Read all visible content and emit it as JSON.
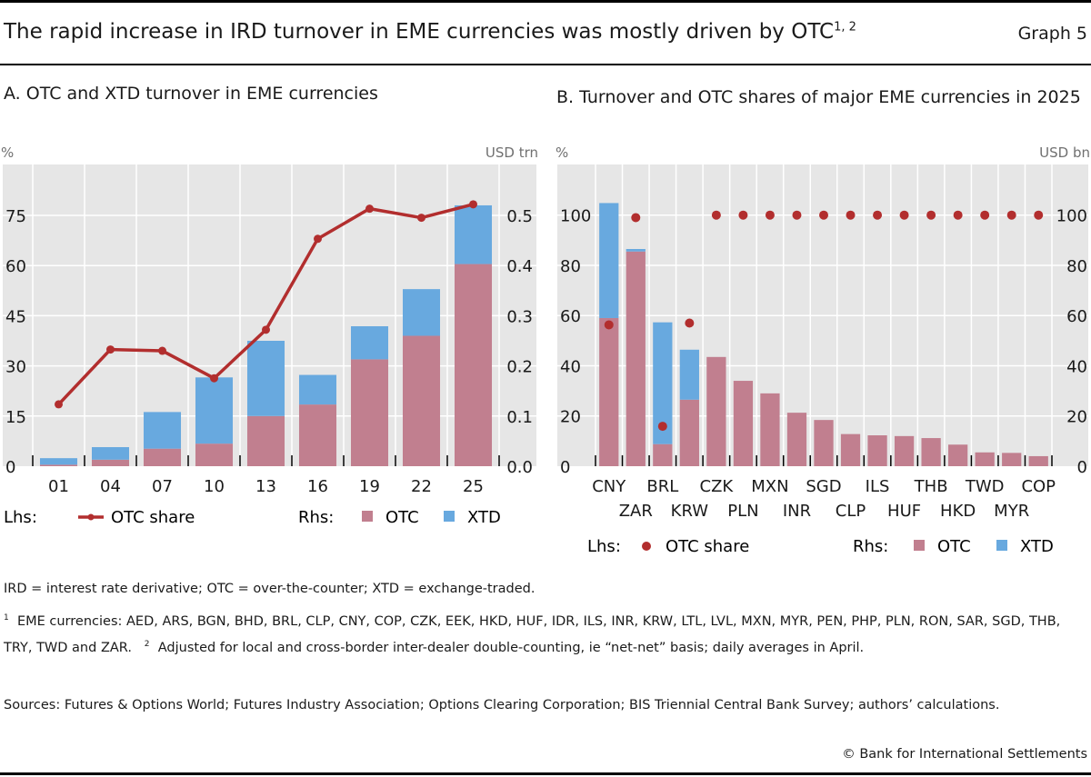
{
  "header": {
    "title": "The rapid increase in IRD turnover in EME currencies was mostly driven by OTC",
    "title_sup": "1, 2",
    "graph_label": "Graph 5"
  },
  "colors": {
    "otc": "#c17f8f",
    "xtd": "#68a9df",
    "line": "#b22e2e",
    "plot_bg": "#e6e6e6"
  },
  "chart_data": [
    {
      "type": "bar",
      "title": "A. OTC and XTD turnover in EME currencies",
      "stacked": true,
      "categories": [
        "01",
        "04",
        "07",
        "10",
        "13",
        "16",
        "19",
        "22",
        "25"
      ],
      "ylabel_left": "%",
      "ylabel_right": "USD trn",
      "ylim_left": [
        0,
        75
      ],
      "ylim_right": [
        0,
        0.5
      ],
      "yticks_left": [
        "0",
        "15",
        "30",
        "45",
        "60",
        "75"
      ],
      "yticks_right": [
        "0.0",
        "0.1",
        "0.2",
        "0.3",
        "0.4",
        "0.5"
      ],
      "grid": true,
      "series": [
        {
          "name": "OTC",
          "axis": "right",
          "kind": "bar",
          "values": [
            0.003,
            0.013,
            0.035,
            0.045,
            0.1,
            0.123,
            0.213,
            0.26,
            0.403
          ]
        },
        {
          "name": "XTD",
          "axis": "right",
          "kind": "bar",
          "values": [
            0.013,
            0.025,
            0.073,
            0.132,
            0.15,
            0.059,
            0.066,
            0.093,
            0.117
          ]
        },
        {
          "name": "OTC share",
          "axis": "left",
          "kind": "line",
          "values": [
            18.5,
            34.9,
            34.5,
            26.3,
            40.8,
            68,
            77,
            74.3,
            78.3
          ]
        }
      ],
      "legend": {
        "lhs_label": "Lhs:",
        "rhs_label": "Rhs:",
        "line": "OTC share",
        "otc": "OTC",
        "xtd": "XTD",
        "placement": "bottom"
      }
    },
    {
      "type": "bar",
      "title": "B. Turnover and OTC shares of major EME currencies in 2025",
      "stacked": true,
      "categories": [
        "CNY",
        "ZAR",
        "BRL",
        "KRW",
        "CZK",
        "PLN",
        "MXN",
        "INR",
        "SGD",
        "CLP",
        "ILS",
        "HUF",
        "THB",
        "HKD",
        "TWD",
        "MYR",
        "COP"
      ],
      "ylabel_left": "%",
      "ylabel_right": "USD bn",
      "ylim_left": [
        0,
        100
      ],
      "ylim_right": [
        0,
        100
      ],
      "yticks_left": [
        "0",
        "20",
        "40",
        "60",
        "80",
        "100"
      ],
      "yticks_right": [
        "0",
        "20",
        "40",
        "60",
        "80",
        "100"
      ],
      "grid": true,
      "series": [
        {
          "name": "OTC",
          "axis": "right",
          "kind": "bar",
          "values": [
            59,
            85.5,
            8.8,
            26.5,
            43.5,
            34,
            29,
            21.3,
            18.4,
            12.8,
            12.3,
            12,
            11.2,
            8.6,
            5.5,
            5.3,
            4
          ]
        },
        {
          "name": "XTD",
          "axis": "right",
          "kind": "bar",
          "values": [
            45.8,
            1,
            48.5,
            19.9,
            0,
            0,
            0,
            0,
            0,
            0,
            0,
            0,
            0,
            0,
            0,
            0,
            0
          ]
        },
        {
          "name": "OTC share",
          "axis": "left",
          "kind": "dot",
          "values": [
            56.3,
            99,
            15.9,
            57,
            100,
            100,
            100,
            100,
            100,
            100,
            100,
            100,
            100,
            100,
            100,
            100,
            100
          ]
        }
      ],
      "legend": {
        "lhs_label": "Lhs:",
        "rhs_label": "Rhs:",
        "line": "OTC share",
        "otc": "OTC",
        "xtd": "XTD",
        "placement": "bottom"
      }
    }
  ],
  "notes": {
    "abbrev": "IRD = interest rate derivative; OTC = over-the-counter; XTD = exchange-traded.",
    "fn1_mark": "1",
    "fn1": "EME currencies: AED, ARS, BGN, BHD, BRL, CLP, CNY, COP, CZK, EEK, HKD, HUF, IDR, ILS, INR, KRW, LTL, LVL, MXN, MYR, PEN, PHP, PLN, RON, SAR, SGD, THB, TRY, TWD and ZAR.",
    "fn2_mark": "2",
    "fn2": "Adjusted for local and cross-border inter-dealer double-counting, ie “net-net” basis; daily averages in April.",
    "sources": "Sources: Futures & Options World; Futures Industry Association; Options Clearing Corporation; BIS Triennial Central Bank Survey; authors’ calculations.",
    "copyright": "© Bank for International Settlements"
  }
}
